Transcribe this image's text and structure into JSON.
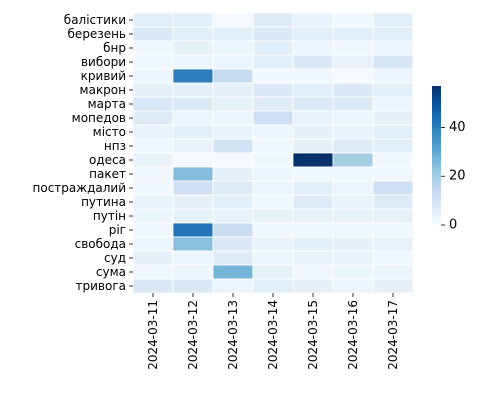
{
  "chart_data": {
    "type": "heatmap",
    "title": "",
    "xlabel": "",
    "ylabel": "",
    "x": [
      "2024-03-11",
      "2024-03-12",
      "2024-03-13",
      "2024-03-14",
      "2024-03-15",
      "2024-03-16",
      "2024-03-17"
    ],
    "y": [
      "балістики",
      "березень",
      "бнр",
      "вибори",
      "кривий",
      "макрон",
      "марта",
      "мопедов",
      "місто",
      "нпз",
      "одеса",
      "пакет",
      "постраждалий",
      "путина",
      "путін",
      "ріг",
      "свобода",
      "суд",
      "сума",
      "тривога"
    ],
    "values": [
      [
        6,
        6,
        1,
        7,
        4,
        2,
        6
      ],
      [
        8,
        6,
        6,
        8,
        6,
        6,
        6
      ],
      [
        2,
        5,
        3,
        6,
        3,
        2,
        3
      ],
      [
        2,
        3,
        3,
        6,
        8,
        4,
        9
      ],
      [
        3,
        40,
        14,
        2,
        2,
        1,
        3
      ],
      [
        5,
        5,
        5,
        8,
        6,
        8,
        6
      ],
      [
        9,
        8,
        5,
        7,
        8,
        8,
        3
      ],
      [
        7,
        3,
        3,
        12,
        4,
        3,
        5
      ],
      [
        4,
        6,
        4,
        3,
        5,
        4,
        6
      ],
      [
        2,
        4,
        11,
        2,
        5,
        7,
        6
      ],
      [
        4,
        1,
        1,
        2,
        57,
        20,
        2
      ],
      [
        2,
        25,
        5,
        3,
        2,
        2,
        2
      ],
      [
        2,
        12,
        7,
        3,
        6,
        3,
        12
      ],
      [
        4,
        5,
        6,
        2,
        7,
        4,
        7
      ],
      [
        3,
        5,
        4,
        5,
        5,
        5,
        5
      ],
      [
        2,
        42,
        13,
        2,
        2,
        2,
        2
      ],
      [
        3,
        24,
        8,
        4,
        6,
        5,
        4
      ],
      [
        5,
        3,
        7,
        3,
        4,
        4,
        2
      ],
      [
        2,
        3,
        27,
        5,
        2,
        3,
        3
      ],
      [
        8,
        8,
        3,
        6,
        5,
        3,
        5
      ]
    ],
    "colorbar": {
      "min": 0,
      "max": 57,
      "ticks": [
        0,
        20,
        40
      ]
    },
    "colormap": "Blues",
    "grid": "white cell borders"
  }
}
